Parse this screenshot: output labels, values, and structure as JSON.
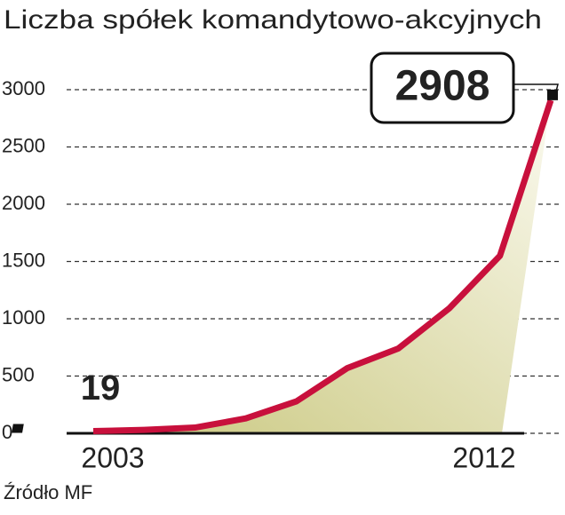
{
  "chart_data": {
    "type": "line",
    "title": "Liczba spółek komandytowo-akcyjnych",
    "x": [
      2003,
      2004,
      2005,
      2006,
      2007,
      2008,
      2009,
      2010,
      2011,
      2012
    ],
    "series": [
      {
        "color": "#c8103c",
        "values": [
          19,
          30,
          50,
          130,
          280,
          570,
          740,
          1090,
          1550,
          2908
        ]
      }
    ],
    "xlim": [
      2003,
      2012
    ],
    "xticks": [
      2003,
      2012
    ],
    "ylim": [
      0,
      3000
    ],
    "yticks": [
      0,
      500,
      1000,
      1500,
      2000,
      2500,
      3000
    ],
    "grid": true,
    "source": "Źródło MF"
  }
}
